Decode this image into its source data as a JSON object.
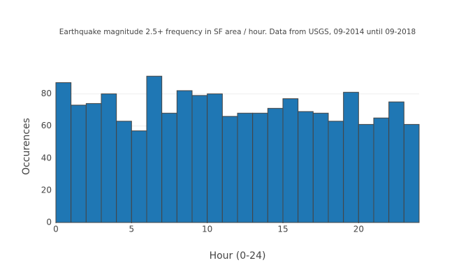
{
  "chart_data": {
    "type": "histogram",
    "title": "Earthquake magnitude 2.5+ frequency in SF area / hour. Data from USGS, 09-2014 until 09-2018",
    "x_label": "Hour (0-24)",
    "y_label": "Occurences",
    "bins": [
      0,
      1,
      2,
      3,
      4,
      5,
      6,
      7,
      8,
      9,
      10,
      11,
      12,
      13,
      14,
      15,
      16,
      17,
      18,
      19,
      20,
      21,
      22,
      23,
      24
    ],
    "values": [
      87,
      73,
      74,
      80,
      63,
      57,
      91,
      68,
      82,
      79,
      80,
      66,
      68,
      68,
      71,
      77,
      69,
      68,
      63,
      81,
      61,
      65,
      75,
      61
    ],
    "color": "#1f77b4",
    "edgecolor": "#444444",
    "xlim": [
      0,
      24
    ],
    "xticks": [
      0,
      5,
      10,
      15,
      20
    ],
    "ylim": [
      0,
      95
    ],
    "yticks": [
      0,
      20,
      40,
      60,
      80
    ],
    "grid": true
  }
}
